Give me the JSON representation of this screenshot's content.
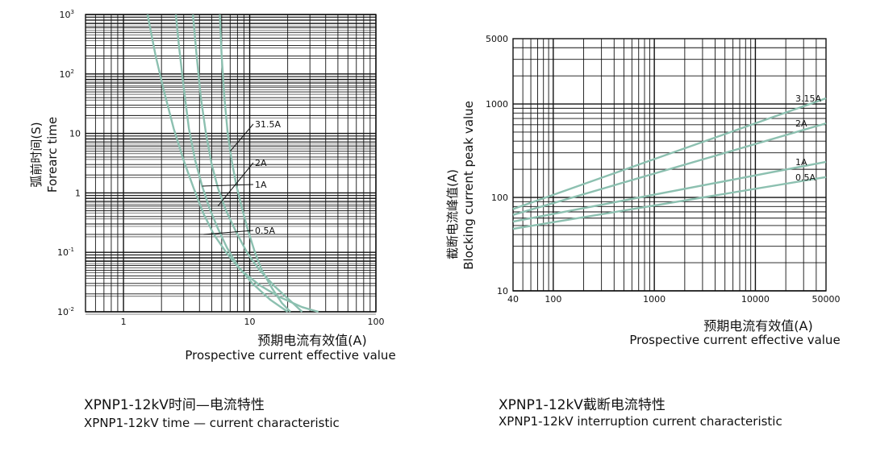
{
  "chart_data": [
    {
      "type": "line",
      "title": "XPNP1-12kV时间—电流特性",
      "subtitle": "XPNP1-12kV time — current characteristic",
      "xlabel": "预期电流有效值(A)",
      "xlabel_en": "Prospective current effective value",
      "ylabel": "弧前时间(S)",
      "ylabel_en": "Forearc time",
      "x_scale": "log",
      "y_scale": "log",
      "xlim": [
        0.5,
        100
      ],
      "ylim": [
        0.01,
        1000
      ],
      "grid": true,
      "xticks": [
        {
          "v": 1,
          "label": "1"
        },
        {
          "v": 10,
          "label": "10"
        },
        {
          "v": 100,
          "label": "100"
        }
      ],
      "yticks": [
        {
          "v": 0.01,
          "label": "10",
          "exp": "-2"
        },
        {
          "v": 0.1,
          "label": "10",
          "exp": "-1"
        },
        {
          "v": 1,
          "label": "1",
          "exp": ""
        },
        {
          "v": 10,
          "label": "10",
          "exp": ""
        },
        {
          "v": 100,
          "label": "10",
          "exp": "2"
        },
        {
          "v": 1000,
          "label": "10",
          "exp": "3"
        }
      ],
      "series": [
        {
          "name": "0.5A",
          "x": [
            1.55,
            1.8,
            2.1,
            2.5,
            3.0,
            3.6,
            4.3,
            5.2,
            6.5,
            8.5,
            12,
            17,
            26,
            35
          ],
          "y": [
            1000,
            200,
            50,
            12,
            3.5,
            1.2,
            0.45,
            0.2,
            0.1,
            0.05,
            0.028,
            0.018,
            0.012,
            0.01
          ]
        },
        {
          "name": "1A",
          "x": [
            2.6,
            2.75,
            3.0,
            3.3,
            3.7,
            4.2,
            4.8,
            5.6,
            6.6,
            8.0,
            10.5,
            14.5,
            20
          ],
          "y": [
            1000,
            300,
            60,
            12,
            3.5,
            1.3,
            0.55,
            0.25,
            0.12,
            0.06,
            0.03,
            0.016,
            0.01
          ]
        },
        {
          "name": "2A",
          "x": [
            3.55,
            3.8,
            4.1,
            4.5,
            5.0,
            5.6,
            6.5,
            7.8,
            9.5,
            12,
            16,
            22,
            26
          ],
          "y": [
            1000,
            200,
            40,
            10,
            3.0,
            1.2,
            0.5,
            0.22,
            0.1,
            0.05,
            0.026,
            0.014,
            0.01
          ]
        },
        {
          "name": "31.5A",
          "x": [
            5.8,
            6.0,
            6.3,
            6.7,
            7.2,
            7.8,
            8.6,
            9.6,
            11,
            12.5,
            15,
            18,
            21
          ],
          "y": [
            1000,
            200,
            40,
            10,
            3.5,
            1.4,
            0.6,
            0.25,
            0.1,
            0.05,
            0.025,
            0.014,
            0.01
          ]
        }
      ]
    },
    {
      "type": "line",
      "title": "XPNP1-12kV截断电流特性",
      "subtitle": "XPNP1-12kV interruption current characteristic",
      "xlabel": "预期电流有效值(A)",
      "xlabel_en": "Prospective current effective value",
      "ylabel": "截断电流峰值(A)",
      "ylabel_en": "Blocking current peak value",
      "x_scale": "log",
      "y_scale": "log",
      "xlim": [
        40,
        50000
      ],
      "ylim": [
        10,
        5000
      ],
      "grid": true,
      "xticks": [
        {
          "v": 40,
          "label": "40"
        },
        {
          "v": 100,
          "label": "100"
        },
        {
          "v": 1000,
          "label": "1000"
        },
        {
          "v": 10000,
          "label": "10000"
        },
        {
          "v": 50000,
          "label": "50000"
        }
      ],
      "yticks": [
        {
          "v": 10,
          "label": "10"
        },
        {
          "v": 100,
          "label": "100"
        },
        {
          "v": 1000,
          "label": "1000"
        },
        {
          "v": 5000,
          "label": "5000"
        }
      ],
      "series": [
        {
          "name": "3.15A",
          "x": [
            40,
            50000
          ],
          "y": [
            75,
            1150
          ]
        },
        {
          "name": "2A",
          "x": [
            40,
            50000
          ],
          "y": [
            65,
            620
          ]
        },
        {
          "name": "1A",
          "x": [
            40,
            50000
          ],
          "y": [
            55,
            240
          ]
        },
        {
          "name": "0.5A",
          "x": [
            40,
            50000
          ],
          "y": [
            46,
            165
          ]
        }
      ]
    }
  ]
}
